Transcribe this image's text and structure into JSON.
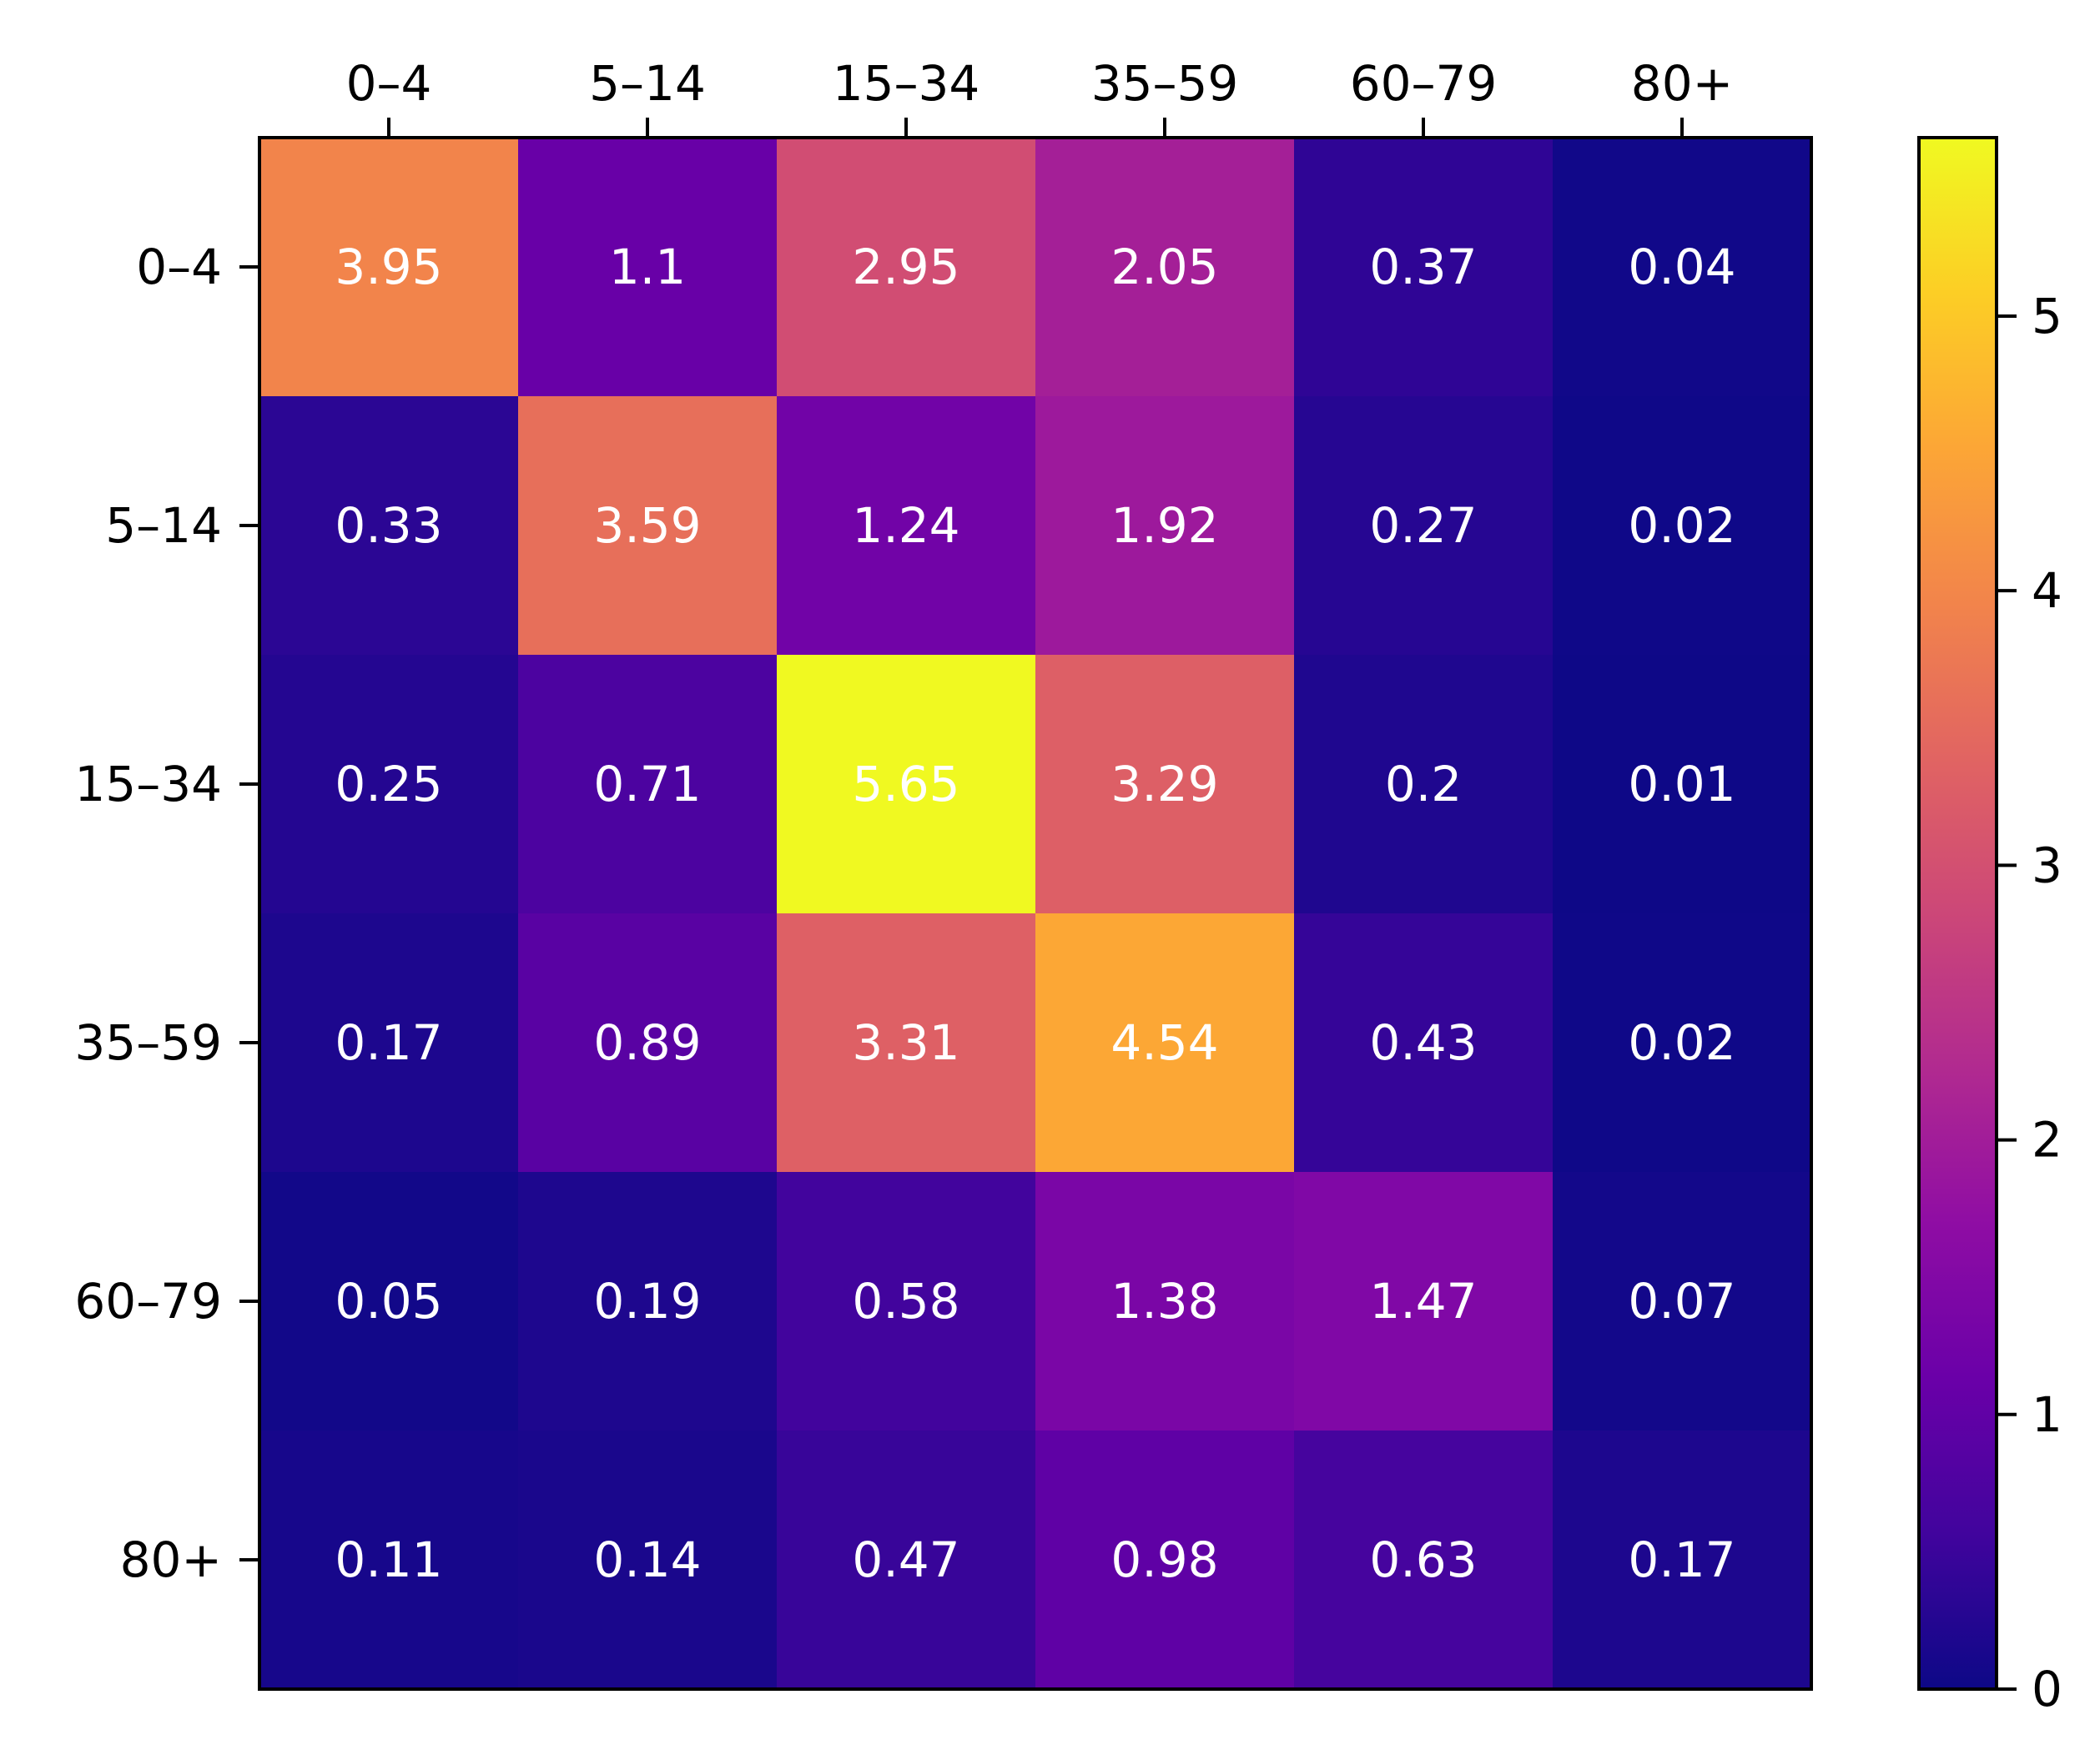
{
  "chart_data": {
    "type": "heatmap",
    "x_categories": [
      "0–4",
      "5–14",
      "15–34",
      "35–59",
      "60–79",
      "80+"
    ],
    "y_categories": [
      "0–4",
      "5–14",
      "15–34",
      "35–59",
      "60–79",
      "80+"
    ],
    "values": [
      [
        3.95,
        1.1,
        2.95,
        2.05,
        0.37,
        0.04
      ],
      [
        0.33,
        3.59,
        1.24,
        1.92,
        0.27,
        0.02
      ],
      [
        0.25,
        0.71,
        5.65,
        3.29,
        0.2,
        0.01
      ],
      [
        0.17,
        0.89,
        3.31,
        4.54,
        0.43,
        0.02
      ],
      [
        0.05,
        0.19,
        0.58,
        1.38,
        1.47,
        0.07
      ],
      [
        0.11,
        0.14,
        0.47,
        0.98,
        0.63,
        0.17
      ]
    ],
    "cell_labels": [
      [
        "3.95",
        "1.1",
        "2.95",
        "2.05",
        "0.37",
        "0.04"
      ],
      [
        "0.33",
        "3.59",
        "1.24",
        "1.92",
        "0.27",
        "0.02"
      ],
      [
        "0.25",
        "0.71",
        "5.65",
        "3.29",
        "0.2",
        "0.01"
      ],
      [
        "0.17",
        "0.89",
        "3.31",
        "4.54",
        "0.43",
        "0.02"
      ],
      [
        "0.05",
        "0.19",
        "0.58",
        "1.38",
        "1.47",
        "0.07"
      ],
      [
        "0.11",
        "0.14",
        "0.47",
        "0.98",
        "0.63",
        "0.17"
      ]
    ],
    "colormap": "plasma",
    "x_axis_position": "top",
    "colorbar": {
      "range": [
        0,
        5.65
      ],
      "ticks": [
        0,
        1,
        2,
        3,
        4,
        5
      ],
      "tick_labels": [
        "0",
        "1",
        "2",
        "3",
        "4",
        "5"
      ],
      "position": "right"
    },
    "title": "",
    "xlabel": "",
    "ylabel": "",
    "grid": false
  }
}
